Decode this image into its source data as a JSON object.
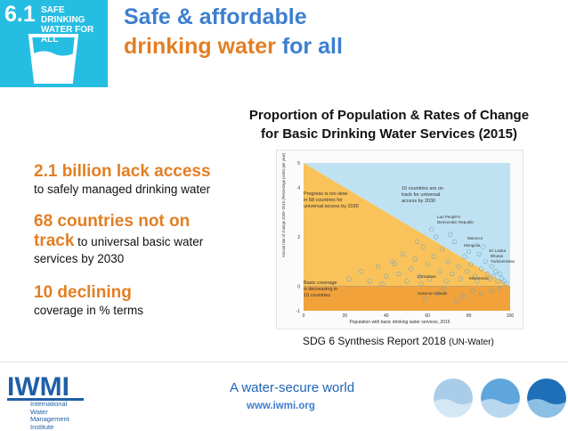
{
  "badge": {
    "number": "6.1",
    "label_lines": [
      "SAFE DRINKING",
      "WATER FOR ALL"
    ]
  },
  "title": {
    "line1": "Safe & affordable",
    "line2_highlight": "drinking water",
    "line2_rest": " for all"
  },
  "chart_heading": {
    "line1": "Proportion of Population & Rates of Change",
    "line2": "for Basic Drinking Water Services  (2015)"
  },
  "stats": {
    "s1_big": "2.1 billion lack access",
    "s1_small": "to safely managed drinking water",
    "s2_big_a": "68 countries not on",
    "s2_big_b": "track",
    "s2_small_inline": " to universal basic water",
    "s2_small_b": "services by 2030",
    "s3_big": "10 declining",
    "s3_small": "coverage in % terms"
  },
  "chart_data": {
    "type": "scatter",
    "xlabel": "Population with basic drinking water services, 2015",
    "ylabel": "Annual rate of change 2000–2015 (Percentage points per year)",
    "xlim": [
      0,
      100
    ],
    "ylim": [
      -1,
      5
    ],
    "x_ticks": [
      "0",
      "20",
      "40",
      "60",
      "80",
      "100"
    ],
    "y_ticks": [
      "5",
      "4",
      "2",
      "0",
      "-1"
    ],
    "regions": {
      "progress_text_1": "Progress is too slow",
      "progress_text_2": "in 68 countries for",
      "progress_text_3": "universal access by 2030",
      "ontrack_text_1": "15 countries are on",
      "ontrack_text_2": "track for universal",
      "ontrack_text_3": "access by 2030",
      "declining_text_1": "Basic coverage",
      "declining_text_2": "is decreasing in",
      "declining_text_3": "10 countries"
    },
    "annotations": {
      "laos_1": "Lao People's",
      "laos_2": "Democratic Republic",
      "morocco": "Morocco",
      "mongolia": "Mongolia",
      "srilanka": "Sri Lanka",
      "bhutan": "Bhutan",
      "turkmenistan": "Turkmenistan",
      "zimbabwe": "Zimbabwe",
      "solomon": "Solomon Islands",
      "micronesia": "Micronesia"
    },
    "points": [
      [
        22,
        0.3
      ],
      [
        28,
        0.6
      ],
      [
        32,
        0.2
      ],
      [
        36,
        0.8
      ],
      [
        40,
        0.4
      ],
      [
        43,
        1.0
      ],
      [
        46,
        0.5
      ],
      [
        48,
        1.3
      ],
      [
        50,
        0.2
      ],
      [
        52,
        0.7
      ],
      [
        54,
        1.1
      ],
      [
        56,
        0.4
      ],
      [
        58,
        1.6
      ],
      [
        60,
        0.9
      ],
      [
        61,
        0.3
      ],
      [
        63,
        1.2
      ],
      [
        64,
        2.0
      ],
      [
        66,
        0.6
      ],
      [
        67,
        1.5
      ],
      [
        69,
        0.2
      ],
      [
        70,
        1.0
      ],
      [
        72,
        0.5
      ],
      [
        73,
        1.8
      ],
      [
        75,
        0.8
      ],
      [
        76,
        0.3
      ],
      [
        78,
        1.2
      ],
      [
        79,
        0.6
      ],
      [
        81,
        0.9
      ],
      [
        83,
        0.4
      ],
      [
        85,
        1.3
      ],
      [
        86,
        0.7
      ],
      [
        88,
        1.0
      ],
      [
        89,
        0.5
      ],
      [
        90,
        0.3
      ],
      [
        91,
        0.8
      ],
      [
        92,
        0.4
      ],
      [
        93,
        0.6
      ],
      [
        94,
        0.2
      ],
      [
        95,
        0.5
      ],
      [
        96,
        0.3
      ],
      [
        97,
        0.2
      ],
      [
        98,
        0.1
      ],
      [
        44,
        0.9
      ],
      [
        57,
        0.1
      ],
      [
        62,
        2.3
      ],
      [
        71,
        2.1
      ],
      [
        80,
        1.4
      ],
      [
        84,
        0.2
      ],
      [
        87,
        1.6
      ],
      [
        55,
        1.8
      ],
      [
        38,
        0.1
      ],
      [
        65,
        -0.3
      ],
      [
        77,
        -0.4
      ],
      [
        82,
        -0.2
      ],
      [
        59,
        -0.5
      ],
      [
        68,
        -0.1
      ],
      [
        74,
        -0.6
      ],
      [
        86,
        -0.3
      ],
      [
        91,
        -0.2
      ],
      [
        95,
        -0.1
      ]
    ]
  },
  "source": {
    "main": "SDG 6 Synthesis Report 2018",
    "sub": "(UN-Water)"
  },
  "footer": {
    "tagline": "A water-secure world",
    "url": "www.iwmi.org",
    "logo_text": "IWMI",
    "logo_sub_1": "International",
    "logo_sub_2": "Water Management",
    "logo_sub_3": "Institute"
  },
  "colors": {
    "sdg_blue": "#26bde2",
    "title_blue": "#3d7fd0",
    "accent_orange": "#e27f24"
  }
}
